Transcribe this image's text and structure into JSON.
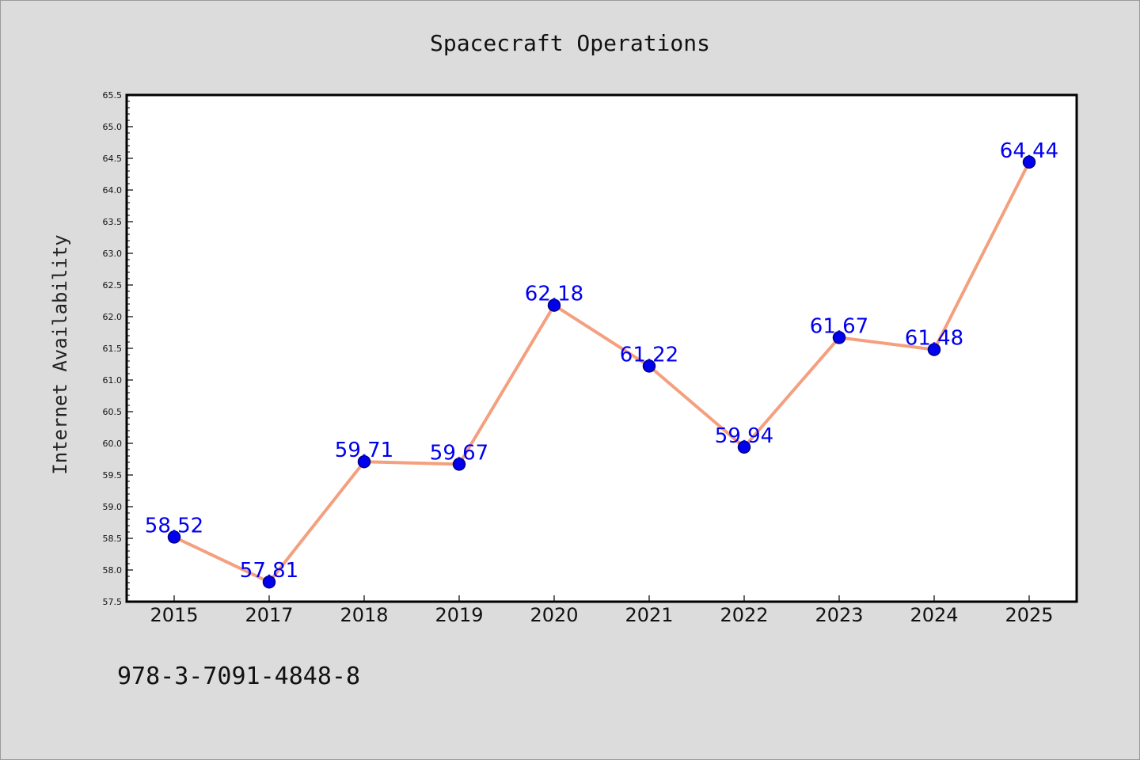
{
  "chart_data": {
    "type": "line",
    "title": "Spacecraft Operations",
    "xlabel": "",
    "ylabel": "Internet Availability",
    "categories": [
      "2015",
      "2017",
      "2018",
      "2019",
      "2020",
      "2021",
      "2022",
      "2023",
      "2024",
      "2025"
    ],
    "series": [
      {
        "values": [
          58.52,
          57.81,
          59.71,
          59.67,
          62.18,
          61.22,
          59.94,
          61.67,
          61.48,
          64.44
        ]
      }
    ],
    "data_labels": [
      "58.52",
      "57.81",
      "59.71",
      "59.67",
      "62.18",
      "61.22",
      "59.94",
      "61.67",
      "61.48",
      "64.44"
    ],
    "ylim": [
      57.5,
      65.5
    ],
    "yticks": [
      "57.5",
      "58.0",
      "58.5",
      "59.0",
      "59.5",
      "60.0",
      "60.5",
      "61.0",
      "61.5",
      "62.0",
      "62.5",
      "63.0",
      "63.5",
      "64.0",
      "64.5",
      "65.0",
      "65.5"
    ],
    "grid": false,
    "legend": "none",
    "colors": {
      "line": "#f4a07e",
      "marker": "#0000ee",
      "marker_edge": "#000080",
      "data_label": "#0000ee",
      "plot_background": "#ffffff",
      "figure_background": "#dcdcdc"
    }
  },
  "footnote": "978-3-7091-4848-8"
}
